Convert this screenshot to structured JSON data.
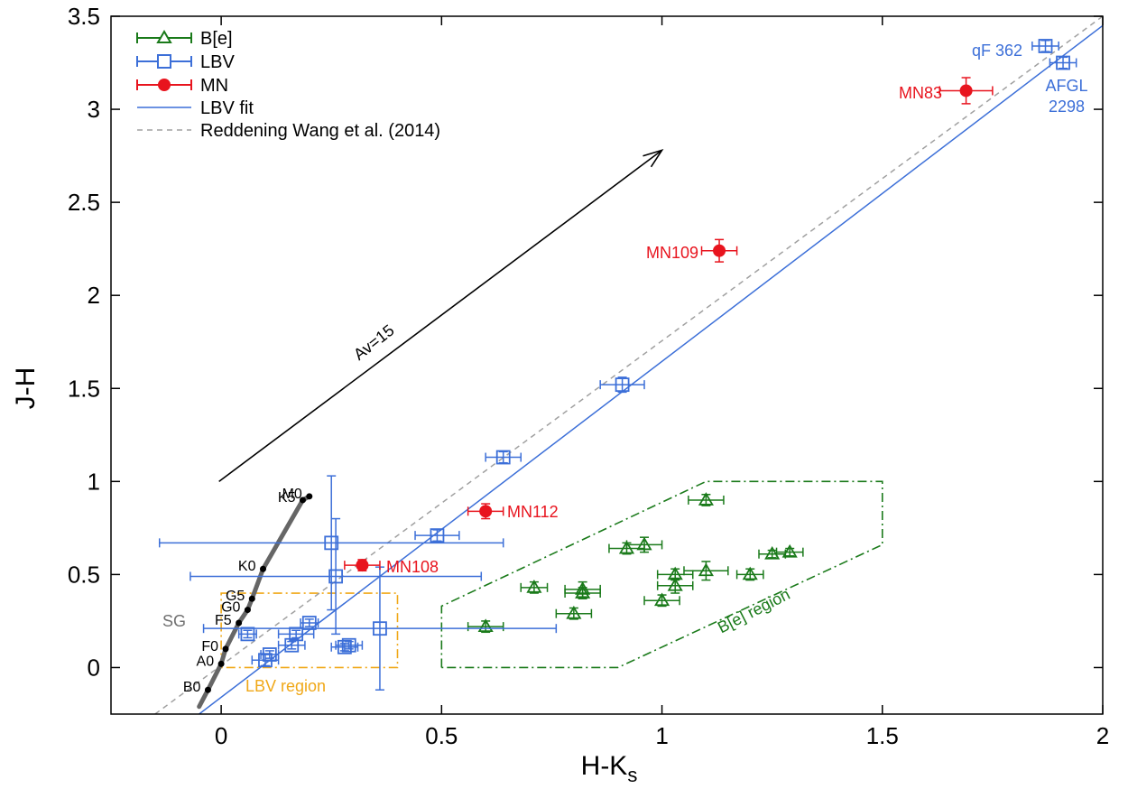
{
  "chart_data": {
    "type": "scatter",
    "xlabel": "H-K",
    "xlabel_sub": "s",
    "ylabel": "J-H",
    "xlim": [
      -0.25,
      2.0
    ],
    "ylim": [
      -0.25,
      3.5
    ],
    "xticks": [
      0,
      0.5,
      1,
      1.5,
      2
    ],
    "xtick_labels": [
      "0",
      "0.5",
      "1",
      "1.5",
      "2"
    ],
    "yticks": [
      0,
      0.5,
      1,
      1.5,
      2,
      2.5,
      3,
      3.5
    ],
    "ytick_labels": [
      "0",
      "0.5",
      "1",
      "1.5",
      "2",
      "2.5",
      "3",
      "3.5"
    ],
    "grid": false,
    "legend_position": "top-left",
    "colors": {
      "be": "#1a7a1a",
      "lbv": "#3c6fd8",
      "mn": "#e8141e",
      "reddening": "#a0a0a0",
      "sg": "#666666",
      "lbv_region": "#f0a818",
      "arrow": "#000000"
    },
    "legend": [
      {
        "key": "be",
        "label": "B[e]"
      },
      {
        "key": "lbv",
        "label": "LBV"
      },
      {
        "key": "mn",
        "label": "MN"
      },
      {
        "key": "lbvfit",
        "label": "LBV fit"
      },
      {
        "key": "reddening",
        "label": "Reddening Wang et al. (2014)"
      }
    ],
    "series": [
      {
        "name": "B[e]",
        "points": [
          {
            "x": 0.6,
            "y": 0.22,
            "xerr": 0.04,
            "yerr": 0.03
          },
          {
            "x": 0.71,
            "y": 0.43,
            "xerr": 0.03,
            "yerr": 0.03
          },
          {
            "x": 0.8,
            "y": 0.29,
            "xerr": 0.04,
            "yerr": 0.03
          },
          {
            "x": 0.82,
            "y": 0.42,
            "xerr": 0.04,
            "yerr": 0.04
          },
          {
            "x": 0.82,
            "y": 0.4,
            "xerr": 0.04,
            "yerr": 0.03
          },
          {
            "x": 0.92,
            "y": 0.64,
            "xerr": 0.04,
            "yerr": 0.03
          },
          {
            "x": 0.96,
            "y": 0.66,
            "xerr": 0.04,
            "yerr": 0.04
          },
          {
            "x": 1.0,
            "y": 0.36,
            "xerr": 0.04,
            "yerr": 0.03
          },
          {
            "x": 1.03,
            "y": 0.5,
            "xerr": 0.04,
            "yerr": 0.03
          },
          {
            "x": 1.03,
            "y": 0.44,
            "xerr": 0.04,
            "yerr": 0.04
          },
          {
            "x": 1.1,
            "y": 0.52,
            "xerr": 0.05,
            "yerr": 0.05
          },
          {
            "x": 1.1,
            "y": 0.9,
            "xerr": 0.04,
            "yerr": 0.03
          },
          {
            "x": 1.2,
            "y": 0.5,
            "xerr": 0.03,
            "yerr": 0.03
          },
          {
            "x": 1.25,
            "y": 0.61,
            "xerr": 0.03,
            "yerr": 0.02
          },
          {
            "x": 1.29,
            "y": 0.62,
            "xerr": 0.03,
            "yerr": 0.02
          }
        ]
      },
      {
        "name": "LBV",
        "points": [
          {
            "x": 0.06,
            "y": 0.18,
            "xerr": 0.02,
            "yerr": 0.02
          },
          {
            "x": 0.1,
            "y": 0.04,
            "xerr": 0.03,
            "yerr": 0.03
          },
          {
            "x": 0.11,
            "y": 0.07,
            "xerr": 0.02,
            "yerr": 0.02
          },
          {
            "x": 0.16,
            "y": 0.12,
            "xerr": 0.03,
            "yerr": 0.02
          },
          {
            "x": 0.17,
            "y": 0.18,
            "xerr": 0.04,
            "yerr": 0.02
          },
          {
            "x": 0.2,
            "y": 0.24,
            "xerr": 0.02,
            "yerr": 0.02
          },
          {
            "x": 0.25,
            "y": 0.67,
            "xerr": 0.39,
            "yerr": 0.36
          },
          {
            "x": 0.26,
            "y": 0.49,
            "xerr": 0.33,
            "yerr": 0.31
          },
          {
            "x": 0.28,
            "y": 0.11,
            "xerr": 0.03,
            "yerr": 0.02
          },
          {
            "x": 0.29,
            "y": 0.12,
            "xerr": 0.03,
            "yerr": 0.02
          },
          {
            "x": 0.36,
            "y": 0.21,
            "xerr": 0.4,
            "yerr": 0.33
          },
          {
            "x": 0.49,
            "y": 0.71,
            "xerr": 0.05,
            "yerr": 0.03
          },
          {
            "x": 0.64,
            "y": 1.13,
            "xerr": 0.04,
            "yerr": 0.03
          },
          {
            "x": 0.91,
            "y": 1.52,
            "xerr": 0.05,
            "yerr": 0.04
          },
          {
            "x": 1.87,
            "y": 3.34,
            "xerr": 0.03,
            "yerr": 0.03
          },
          {
            "x": 1.91,
            "y": 3.25,
            "xerr": 0.03,
            "yerr": 0.03
          }
        ]
      },
      {
        "name": "MN",
        "points": [
          {
            "x": 0.32,
            "y": 0.55,
            "xerr": 0.04,
            "yerr": 0.03
          },
          {
            "x": 0.6,
            "y": 0.84,
            "xerr": 0.04,
            "yerr": 0.04
          },
          {
            "x": 1.13,
            "y": 2.24,
            "xerr": 0.04,
            "yerr": 0.06
          },
          {
            "x": 1.69,
            "y": 3.1,
            "xerr": 0.06,
            "yerr": 0.07
          }
        ]
      }
    ],
    "lbv_fit": {
      "x": [
        -0.05,
        2.0
      ],
      "y": [
        -0.25,
        3.45
      ]
    },
    "reddening_line": {
      "x": [
        -0.15,
        2.0
      ],
      "y": [
        -0.25,
        3.5
      ]
    },
    "extinction_vector": {
      "from": [
        -0.005,
        1.0
      ],
      "to": [
        1.0,
        2.78
      ],
      "label": "Av=15"
    },
    "sg_sequence": {
      "label": "SG",
      "points": [
        {
          "name": "B0",
          "x": -0.03,
          "y": -0.12
        },
        {
          "name": "A0",
          "x": 0.0,
          "y": 0.02
        },
        {
          "name": "F0",
          "x": 0.01,
          "y": 0.1
        },
        {
          "name": "F5",
          "x": 0.04,
          "y": 0.24
        },
        {
          "name": "G0",
          "x": 0.06,
          "y": 0.31
        },
        {
          "name": "G5",
          "x": 0.07,
          "y": 0.37
        },
        {
          "name": "K0",
          "x": 0.095,
          "y": 0.53
        },
        {
          "name": "K5",
          "x": 0.185,
          "y": 0.9
        },
        {
          "name": "M0",
          "x": 0.2,
          "y": 0.92
        }
      ],
      "tail": {
        "x": -0.05,
        "y": -0.21
      }
    },
    "regions": [
      {
        "name": "LBV region",
        "x": [
          0.0,
          0.0,
          0.4,
          0.4,
          0.0
        ],
        "y": [
          0.0,
          0.4,
          0.4,
          0.0,
          0.0
        ]
      },
      {
        "name": "B[e] region",
        "x": [
          0.5,
          0.5,
          1.1,
          1.5,
          1.5,
          0.9,
          0.5
        ],
        "y": [
          0.0,
          0.33,
          1.0,
          1.0,
          0.66,
          0.0,
          0.0
        ]
      }
    ],
    "annotations": [
      {
        "text": "qF 362",
        "series": "lbv"
      },
      {
        "text": "AFGL",
        "series": "lbv"
      },
      {
        "text": "2298",
        "series": "lbv"
      },
      {
        "text": "MN83",
        "series": "mn"
      },
      {
        "text": "MN109",
        "series": "mn"
      },
      {
        "text": "MN112",
        "series": "mn"
      },
      {
        "text": "MN108",
        "series": "mn"
      },
      {
        "text": "LBV region",
        "series": "lbv_region"
      },
      {
        "text": "B[e] region",
        "series": "be"
      },
      {
        "text": "SG",
        "series": "sg"
      }
    ]
  }
}
